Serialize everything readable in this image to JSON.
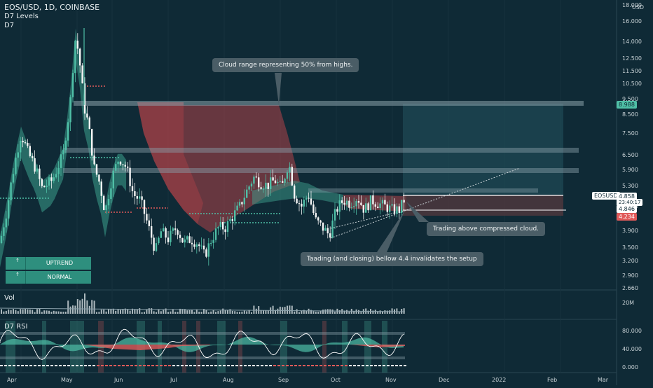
{
  "header": {
    "title": "EOS/USD, 1D, COINBASE",
    "indicator1": "D7 Levels",
    "indicator2": "D7",
    "vol_label": "Vol",
    "rsi_label": "D7 RSI",
    "usd_label": "USD"
  },
  "price_axis": [
    "18.000",
    "16.000",
    "14.000",
    "12.500",
    "11.500",
    "10.500",
    "9.500",
    "8.500",
    "7.500",
    "6.500",
    "5.900",
    "5.300",
    "4.400",
    "3.900",
    "3.500",
    "3.200",
    "2.900",
    "2.660"
  ],
  "vol_axis": [
    "20M"
  ],
  "rsi_axis": [
    "80.000",
    "40.000",
    "0.000"
  ],
  "x_axis": [
    "Apr",
    "May",
    "Jun",
    "Jul",
    "Aug",
    "Sep",
    "Oct",
    "Nov",
    "Dec",
    "2022",
    "Feb",
    "Mar"
  ],
  "price_tags": {
    "level_top": "8.988",
    "symbol": "EOSUSD",
    "last": "4.858",
    "countdown": "23:40:17",
    "second": "4.846",
    "low_tag": "4.234"
  },
  "status_panel": [
    {
      "arrow": "↑",
      "label": "UPTREND"
    },
    {
      "arrow": "↑",
      "label": "NORMAL"
    }
  ],
  "annotations": {
    "cloud": "Cloud range representing 50% from highs.",
    "above": "Trading above compressed cloud.",
    "invalid": "Taading (and closing) bellow 4.4 invalidates the setup"
  },
  "colors": {
    "bg": "#0f2a36",
    "up": "#4fbfa6",
    "down": "#e05a5a",
    "cloud_green": "#3d9e8c",
    "cloud_red": "#c0444a",
    "level": "#8aa0aa"
  },
  "chart_data": {
    "type": "candlestick",
    "levels": [
      8.988,
      6.6,
      5.8,
      4.85
    ],
    "last_price": 4.858,
    "ylim": [
      2.66,
      18.0
    ],
    "scale": "log",
    "x_range": [
      "Mar 2021",
      "Mar 2022"
    ]
  }
}
